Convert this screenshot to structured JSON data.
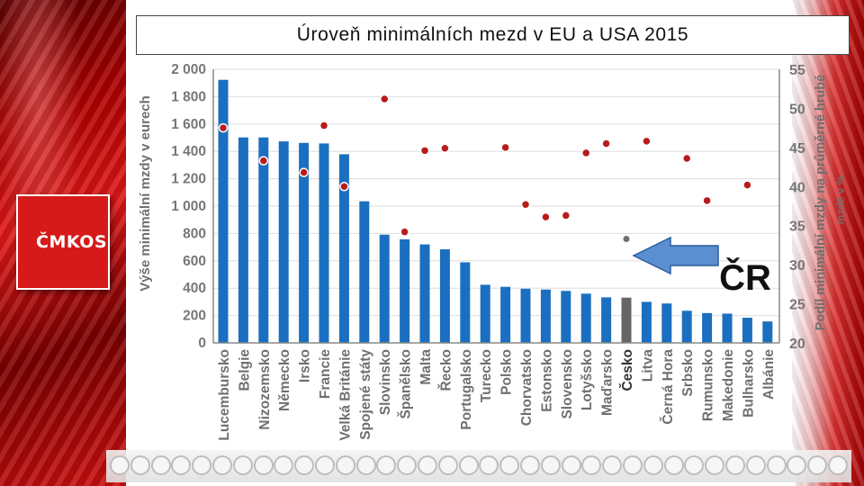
{
  "slide": {
    "title": "Úroveň minimálních mezd v EU a USA 2015",
    "logo_text": "ČMKOS",
    "arrow_label": "ČR"
  },
  "colors": {
    "bar": "#1b6fc0",
    "bar_highlight": "#666666",
    "dot": "#b81c1c",
    "dot_highlight": "#707070",
    "arrow": "#5b8fd0"
  },
  "chart_data": {
    "type": "bar",
    "title": "Úroveň minimálních mezd v EU a USA 2015",
    "ylabel": "Výše minimální mzdy v eurech",
    "y2label_line1": "Podíl minimální mzdy na průměrné hrubé",
    "y2label_line2": "mzdě v %",
    "ylim": [
      0,
      2000
    ],
    "y2lim": [
      20,
      55
    ],
    "yticks": [
      "0",
      "200",
      "400",
      "600",
      "800",
      "1 000",
      "1 200",
      "1 400",
      "1 600",
      "1 800",
      "2 000"
    ],
    "y2ticks": [
      "20",
      "25",
      "30",
      "35",
      "40",
      "45",
      "50",
      "55"
    ],
    "highlight_category": "Česko",
    "categories": [
      "Lucembursko",
      "Belgie",
      "Nizozemsko",
      "Německo",
      "Irsko",
      "Francie",
      "Velká Británie",
      "Spojené státy",
      "Slovinsko",
      "Španělsko",
      "Malta",
      "Řecko",
      "Portugalsko",
      "Turecko",
      "Polsko",
      "Chorvatsko",
      "Estonsko",
      "Slovensko",
      "Lotyšsko",
      "Maďarsko",
      "Česko",
      "Litva",
      "Černá Hora",
      "Srbsko",
      "Rumunsko",
      "Makedonie",
      "Bulharsko",
      "Albánie"
    ],
    "series": [
      {
        "name": "Výše minimální mzdy v eurech",
        "axis": "left",
        "kind": "bar",
        "values": [
          1923,
          1502,
          1502,
          1473,
          1462,
          1458,
          1379,
          1035,
          791,
          757,
          720,
          684,
          589,
          425,
          410,
          396,
          390,
          380,
          360,
          333,
          331,
          300,
          288,
          235,
          218,
          214,
          184,
          157
        ]
      },
      {
        "name": "Podíl minimální mzdy na průměrné hrubé mzdě v %",
        "axis": "right",
        "kind": "scatter",
        "values": [
          47.5,
          null,
          43.3,
          null,
          41.8,
          47.8,
          40.0,
          null,
          51.2,
          34.2,
          44.6,
          44.9,
          null,
          null,
          45.0,
          37.7,
          36.1,
          36.3,
          44.3,
          45.5,
          33.3,
          45.8,
          null,
          43.6,
          38.2,
          null,
          40.2,
          null
        ]
      }
    ]
  },
  "footer_icons": [
    "union-logo-1",
    "union-logo-2",
    "union-logo-3",
    "union-logo-4",
    "union-logo-5",
    "union-logo-6",
    "union-logo-7",
    "union-logo-8",
    "union-logo-9",
    "union-logo-10",
    "union-logo-11",
    "union-logo-12",
    "union-logo-13",
    "union-logo-14",
    "union-logo-15",
    "union-logo-16",
    "union-logo-17",
    "union-logo-18",
    "union-logo-19",
    "union-logo-20",
    "union-logo-21",
    "union-logo-22",
    "union-logo-23",
    "union-logo-24",
    "union-logo-25",
    "union-logo-26",
    "union-logo-27",
    "union-logo-28",
    "union-logo-29",
    "union-logo-30",
    "union-logo-31",
    "union-logo-32",
    "union-logo-33",
    "union-logo-34",
    "union-logo-35",
    "union-logo-36",
    "union-logo-37",
    "union-logo-38",
    "union-logo-39",
    "union-logo-40",
    "union-logo-41",
    "union-logo-42",
    "union-logo-43",
    "union-logo-44",
    "union-logo-45",
    "union-logo-46",
    "union-logo-47",
    "union-logo-48",
    "union-logo-49",
    "union-logo-50",
    "union-logo-51",
    "union-logo-52",
    "union-logo-53",
    "union-logo-54",
    "union-logo-55",
    "union-logo-56",
    "union-logo-57",
    "union-logo-58",
    "union-logo-59",
    "union-logo-60"
  ]
}
